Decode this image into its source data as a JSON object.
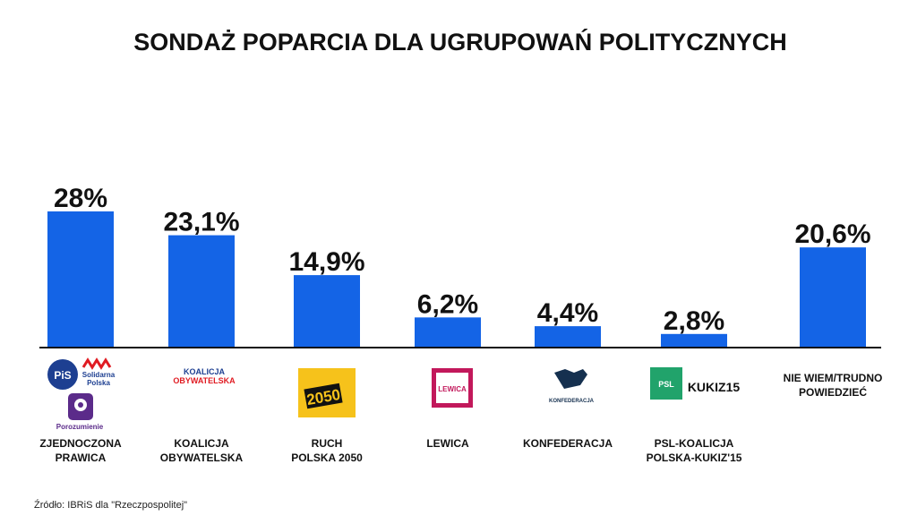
{
  "chart_data": {
    "type": "bar",
    "title": "SONDAŻ POPARCIA DLA UGRUPOWAŃ POLITYCZNYCH",
    "categories": [
      [
        "ZJEDNOCZONA",
        "PRAWICA"
      ],
      [
        "KOALICJA",
        "OBYWATELSKA"
      ],
      [
        "RUCH",
        "POLSKA 2050"
      ],
      [
        "LEWICA"
      ],
      [
        "KONFEDERACJA"
      ],
      [
        "PSL-KOALICJA",
        "POLSKA-KUKIZ'15"
      ],
      [
        "NIE WIEM/TRUDNO",
        "POWIEDZIEĆ"
      ]
    ],
    "values": [
      28,
      23.1,
      14.9,
      6.2,
      4.4,
      2.8,
      20.6
    ],
    "value_labels": [
      "28%",
      "23,1%",
      "14,9%",
      "6,2%",
      "4,4%",
      "2,8%",
      "20,6%"
    ],
    "ylim": [
      0,
      28
    ],
    "grid": false,
    "bar_color": "#1464e6",
    "baseline_color": "#111111"
  },
  "logos": {
    "pis": "PiS",
    "solidarna": [
      "Solidarna",
      "Polska"
    ],
    "porozumienie": "Porozumienie",
    "ko": [
      "KOALICJA",
      "OBYWATELSKA"
    ],
    "polska2050": "2050",
    "lewica": "LEWICA",
    "konfederacja": "KONFEDERACJA",
    "psl": "PSL",
    "kukiz": "KUKIZ15"
  },
  "source": "Źródło: IBRiS dla \"Rzeczpospolitej\""
}
